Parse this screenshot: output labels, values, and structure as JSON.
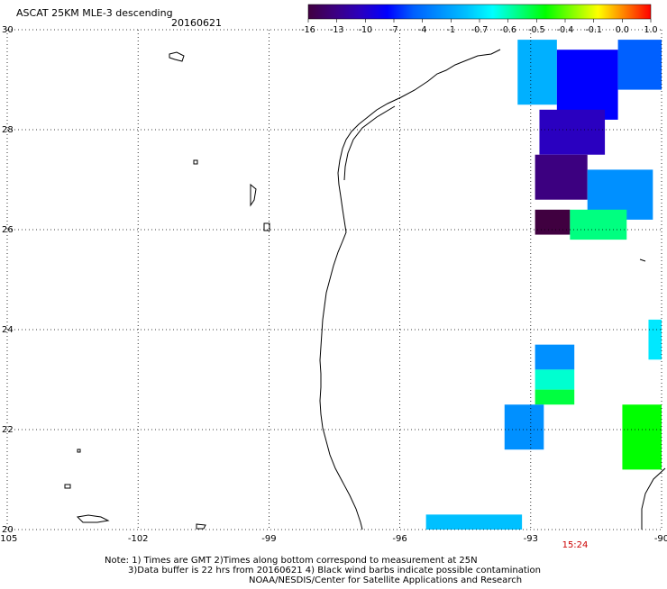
{
  "header": {
    "title": "ASCAT 25KM MLE-3 descending",
    "date": "20160621"
  },
  "colors": {
    "map_line": "#000000",
    "gridline": "#000000",
    "time_label": "#cc0000"
  },
  "colorbar": {
    "tick_labels": [
      "-16",
      "-13",
      "-10",
      "-7",
      "-4",
      "-1",
      "-0.7",
      "-0.6",
      "-0.5",
      "-0.4",
      "-0.1",
      "0.0",
      "1.0"
    ],
    "stops": [
      "#400040",
      "#3c0080",
      "#2a00c0",
      "#0000ff",
      "#0060ff",
      "#0090ff",
      "#00c0ff",
      "#00ffff",
      "#00ff80",
      "#00ff00",
      "#80ff00",
      "#ffff00",
      "#ff8000",
      "#ff0000"
    ]
  },
  "notes": {
    "line1": "Note: 1) Times are GMT 2)Times along bottom correspond to measurement at 25N",
    "line2": "3)Data buffer is 22 hrs from 20160621 4) Black wind barbs indicate possible contamination",
    "line3": "NOAA/NESDIS/Center for Satellite Applications and Research"
  },
  "time_label": "15:24",
  "chart_data": {
    "type": "heatmap",
    "title": "ASCAT 25KM MLE-3 descending",
    "subtitle": "20160621",
    "xlabel": "",
    "ylabel": "",
    "xlim": [
      -105,
      -90
    ],
    "ylim": [
      20,
      30
    ],
    "x_ticks": [
      -105,
      -102,
      -99,
      -96,
      -93,
      -90
    ],
    "x_tick_labels": [
      "-105",
      "-102",
      "-99",
      "-96",
      "-93",
      "-90"
    ],
    "y_ticks": [
      20,
      22,
      24,
      26,
      28,
      30
    ],
    "y_tick_labels": [
      "20",
      "22",
      "24",
      "26",
      "28",
      "30"
    ],
    "grid": true,
    "grid_style": "dotted",
    "colorbar_levels": [
      -16,
      -13,
      -10,
      -7,
      -4,
      -1,
      -0.7,
      -0.6,
      -0.5,
      -0.4,
      -0.1,
      0.0,
      1.0
    ],
    "cells": [
      {
        "lon": [
          -93.3,
          -92.4
        ],
        "lat": [
          28.5,
          29.8
        ],
        "color": "#00b0ff"
      },
      {
        "lon": [
          -92.4,
          -91.0
        ],
        "lat": [
          28.2,
          29.6
        ],
        "color": "#0000ff"
      },
      {
        "lon": [
          -91.0,
          -90.0
        ],
        "lat": [
          28.8,
          29.8
        ],
        "color": "#0060ff"
      },
      {
        "lon": [
          -92.8,
          -91.3
        ],
        "lat": [
          27.5,
          28.4
        ],
        "color": "#2a00c0"
      },
      {
        "lon": [
          -92.9,
          -91.7
        ],
        "lat": [
          26.6,
          27.5
        ],
        "color": "#3c0080"
      },
      {
        "lon": [
          -91.7,
          -90.2
        ],
        "lat": [
          26.2,
          27.2
        ],
        "color": "#0090ff"
      },
      {
        "lon": [
          -92.9,
          -92.1
        ],
        "lat": [
          25.9,
          26.4
        ],
        "color": "#400040"
      },
      {
        "lon": [
          -92.1,
          -90.8
        ],
        "lat": [
          25.8,
          26.4
        ],
        "color": "#00ff80"
      },
      {
        "lon": [
          -92.9,
          -92.0
        ],
        "lat": [
          23.2,
          23.7
        ],
        "color": "#0090ff"
      },
      {
        "lon": [
          -92.9,
          -92.0
        ],
        "lat": [
          22.8,
          23.2
        ],
        "color": "#00ffd0"
      },
      {
        "lon": [
          -92.9,
          -92.0
        ],
        "lat": [
          22.5,
          22.8
        ],
        "color": "#00ff40"
      },
      {
        "lon": [
          -93.6,
          -92.7
        ],
        "lat": [
          21.6,
          22.5
        ],
        "color": "#0090ff"
      },
      {
        "lon": [
          -90.9,
          -89.9
        ],
        "lat": [
          21.2,
          22.5
        ],
        "color": "#00ff00"
      },
      {
        "lon": [
          -90.3,
          -89.9
        ],
        "lat": [
          23.4,
          24.2
        ],
        "color": "#00e8ff"
      },
      {
        "lon": [
          -95.4,
          -93.2
        ],
        "lat": [
          20.0,
          20.3
        ],
        "color": "#00c0ff"
      }
    ]
  }
}
